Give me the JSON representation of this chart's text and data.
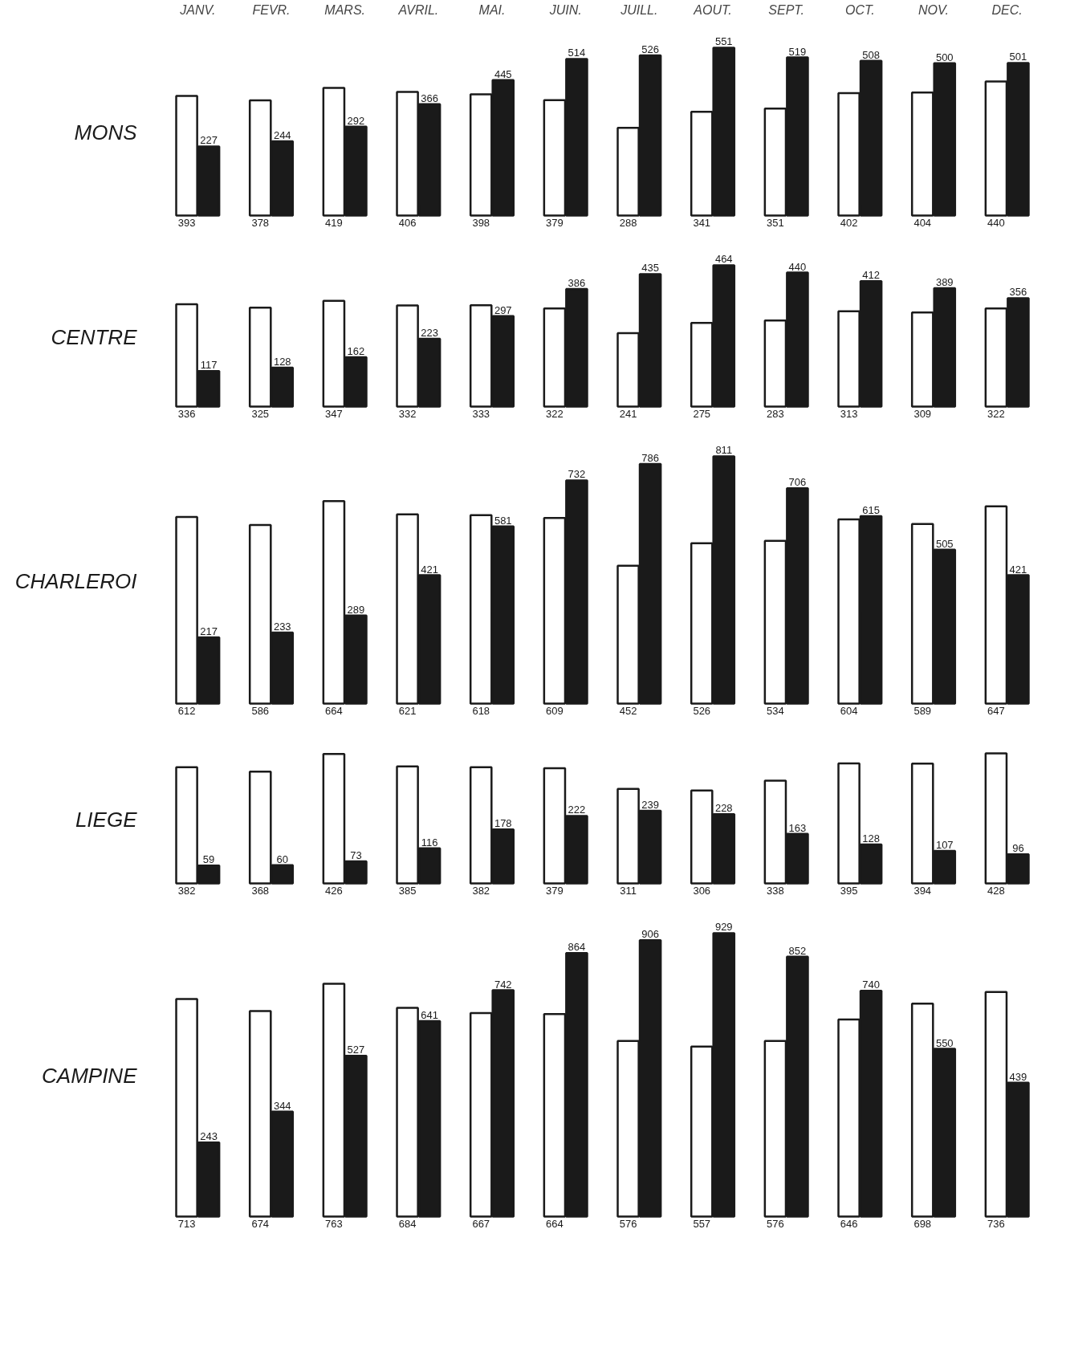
{
  "chart_data": [
    {
      "type": "bar",
      "ylabel": "MONS",
      "categories": [
        "JANV.",
        "FEVR.",
        "MARS.",
        "AVRIL.",
        "MAI.",
        "JUIN.",
        "JUILL.",
        "AOUT.",
        "SEPT.",
        "OCT.",
        "NOV.",
        "DEC."
      ],
      "tick_labels": "x",
      "data_labels": true,
      "series": [
        {
          "color": "#ffffff",
          "values": [
            393,
            378,
            419,
            406,
            398,
            379,
            288,
            341,
            351,
            402,
            404,
            440
          ]
        },
        {
          "color": "#1a1a1a",
          "values": [
            227,
            244,
            292,
            366,
            445,
            514,
            526,
            551,
            519,
            508,
            500,
            501
          ]
        }
      ]
    },
    {
      "type": "bar",
      "ylabel": "CENTRE",
      "categories": [
        null,
        null,
        null,
        null,
        null,
        null,
        null,
        null,
        null,
        null,
        null,
        null
      ],
      "data_labels": true,
      "series": [
        {
          "color": "#ffffff",
          "values": [
            336,
            325,
            347,
            332,
            333,
            322,
            241,
            275,
            283,
            313,
            309,
            322
          ]
        },
        {
          "color": "#1a1a1a",
          "values": [
            117,
            128,
            162,
            223,
            297,
            386,
            435,
            464,
            440,
            412,
            389,
            356
          ]
        }
      ]
    },
    {
      "type": "bar",
      "ylabel": "CHARLEROI",
      "categories": [
        null,
        null,
        null,
        null,
        null,
        null,
        null,
        null,
        null,
        null,
        null,
        null
      ],
      "data_labels": true,
      "series": [
        {
          "color": "#ffffff",
          "values": [
            612,
            586,
            664,
            621,
            618,
            609,
            452,
            526,
            534,
            604,
            589,
            647
          ]
        },
        {
          "color": "#1a1a1a",
          "values": [
            217,
            233,
            289,
            421,
            581,
            732,
            786,
            811,
            706,
            615,
            505,
            421
          ]
        }
      ]
    },
    {
      "type": "bar",
      "ylabel": "LIEGE",
      "categories": [
        null,
        null,
        null,
        null,
        null,
        null,
        null,
        null,
        null,
        null,
        null,
        null
      ],
      "data_labels": true,
      "series": [
        {
          "color": "#ffffff",
          "values": [
            382,
            368,
            426,
            385,
            382,
            379,
            311,
            306,
            338,
            395,
            394,
            428
          ]
        },
        {
          "color": "#1a1a1a",
          "values": [
            59,
            60,
            73,
            116,
            178,
            222,
            239,
            228,
            163,
            128,
            107,
            96
          ]
        }
      ]
    },
    {
      "type": "bar",
      "ylabel": "CAMPINE",
      "categories": [
        null,
        null,
        null,
        null,
        null,
        null,
        null,
        null,
        null,
        null,
        null,
        null
      ],
      "data_labels": true,
      "series": [
        {
          "color": "#ffffff",
          "values": [
            713,
            674,
            763,
            684,
            667,
            664,
            576,
            557,
            576,
            646,
            698,
            736
          ]
        },
        {
          "color": "#1a1a1a",
          "values": [
            243,
            344,
            527,
            641,
            742,
            864,
            906,
            929,
            852,
            740,
            550,
            439
          ]
        }
      ]
    }
  ]
}
